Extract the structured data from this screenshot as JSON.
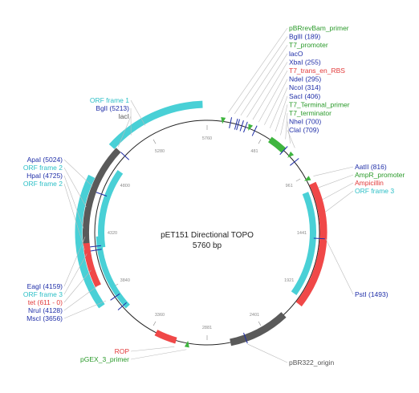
{
  "plasmid": {
    "name": "pET151 Directional TOPO",
    "length_label": "5760 bp",
    "length": 5760
  },
  "colors": {
    "blue": "#1f2ea8",
    "green": "#2a9a2a",
    "red": "#e23a3a",
    "cyan": "#2bbfc6",
    "gray": "#555555",
    "cyan_fill": "#49d0d6",
    "red_fill": "#f04848",
    "green_fill": "#3fb53f",
    "gray_fill": "#5a5a5a"
  },
  "ticks": [
    "481",
    "961",
    "1441",
    "1921",
    "2401",
    "2881",
    "3360",
    "3840",
    "4320",
    "4800",
    "5280",
    "5760"
  ],
  "features_right_top": [
    {
      "label": "pBRrevBam_primer",
      "color": "green"
    },
    {
      "label": "BglII (189)",
      "color": "blue"
    },
    {
      "label": "T7_promoter",
      "color": "green"
    },
    {
      "label": "lacO",
      "color": "blue"
    },
    {
      "label": "XbaI (255)",
      "color": "blue"
    },
    {
      "label": "T7_trans_en_RBS",
      "color": "red"
    },
    {
      "label": "NdeI (295)",
      "color": "blue"
    },
    {
      "label": "NcoI (314)",
      "color": "blue"
    },
    {
      "label": "SacI (406)",
      "color": "blue"
    },
    {
      "label": "T7_Terminal_primer",
      "color": "green"
    },
    {
      "label": "T7_terminator",
      "color": "green"
    },
    {
      "label": "NheI (700)",
      "color": "blue"
    },
    {
      "label": "ClaI (709)",
      "color": "blue"
    }
  ],
  "features_right_mid": [
    {
      "label": "AatII (816)",
      "color": "blue"
    },
    {
      "label": "AmpR_promoter",
      "color": "green"
    },
    {
      "label": "Ampicillin",
      "color": "red"
    },
    {
      "label": "ORF frame 3",
      "color": "cyan"
    }
  ],
  "pst": {
    "label": "PstI (1493)",
    "color": "blue"
  },
  "ori": {
    "label": "pBR322_origin",
    "color": "gray"
  },
  "rop": [
    {
      "label": "ROP",
      "color": "red"
    },
    {
      "label": "pGEX_3_primer",
      "color": "green"
    }
  ],
  "left_top": [
    {
      "label": "ORF frame 1",
      "color": "cyan"
    },
    {
      "label": "BglI (5213)",
      "color": "blue"
    },
    {
      "label": "lacI",
      "color": "gray"
    }
  ],
  "left_mid": [
    {
      "label": "ApaI (5024)",
      "color": "blue"
    },
    {
      "label": "ORF frame 2",
      "color": "cyan"
    },
    {
      "label": "HpaI (4725)",
      "color": "blue"
    },
    {
      "label": "ORF frame 2",
      "color": "cyan"
    }
  ],
  "left_bottom": [
    {
      "label": "EagI (4159)",
      "color": "blue"
    },
    {
      "label": "ORF frame 3",
      "color": "cyan"
    },
    {
      "label": "tet (611 - 0)",
      "color": "red"
    },
    {
      "label": "NruI (4128)",
      "color": "blue"
    },
    {
      "label": "MscI (3656)",
      "color": "blue"
    }
  ]
}
